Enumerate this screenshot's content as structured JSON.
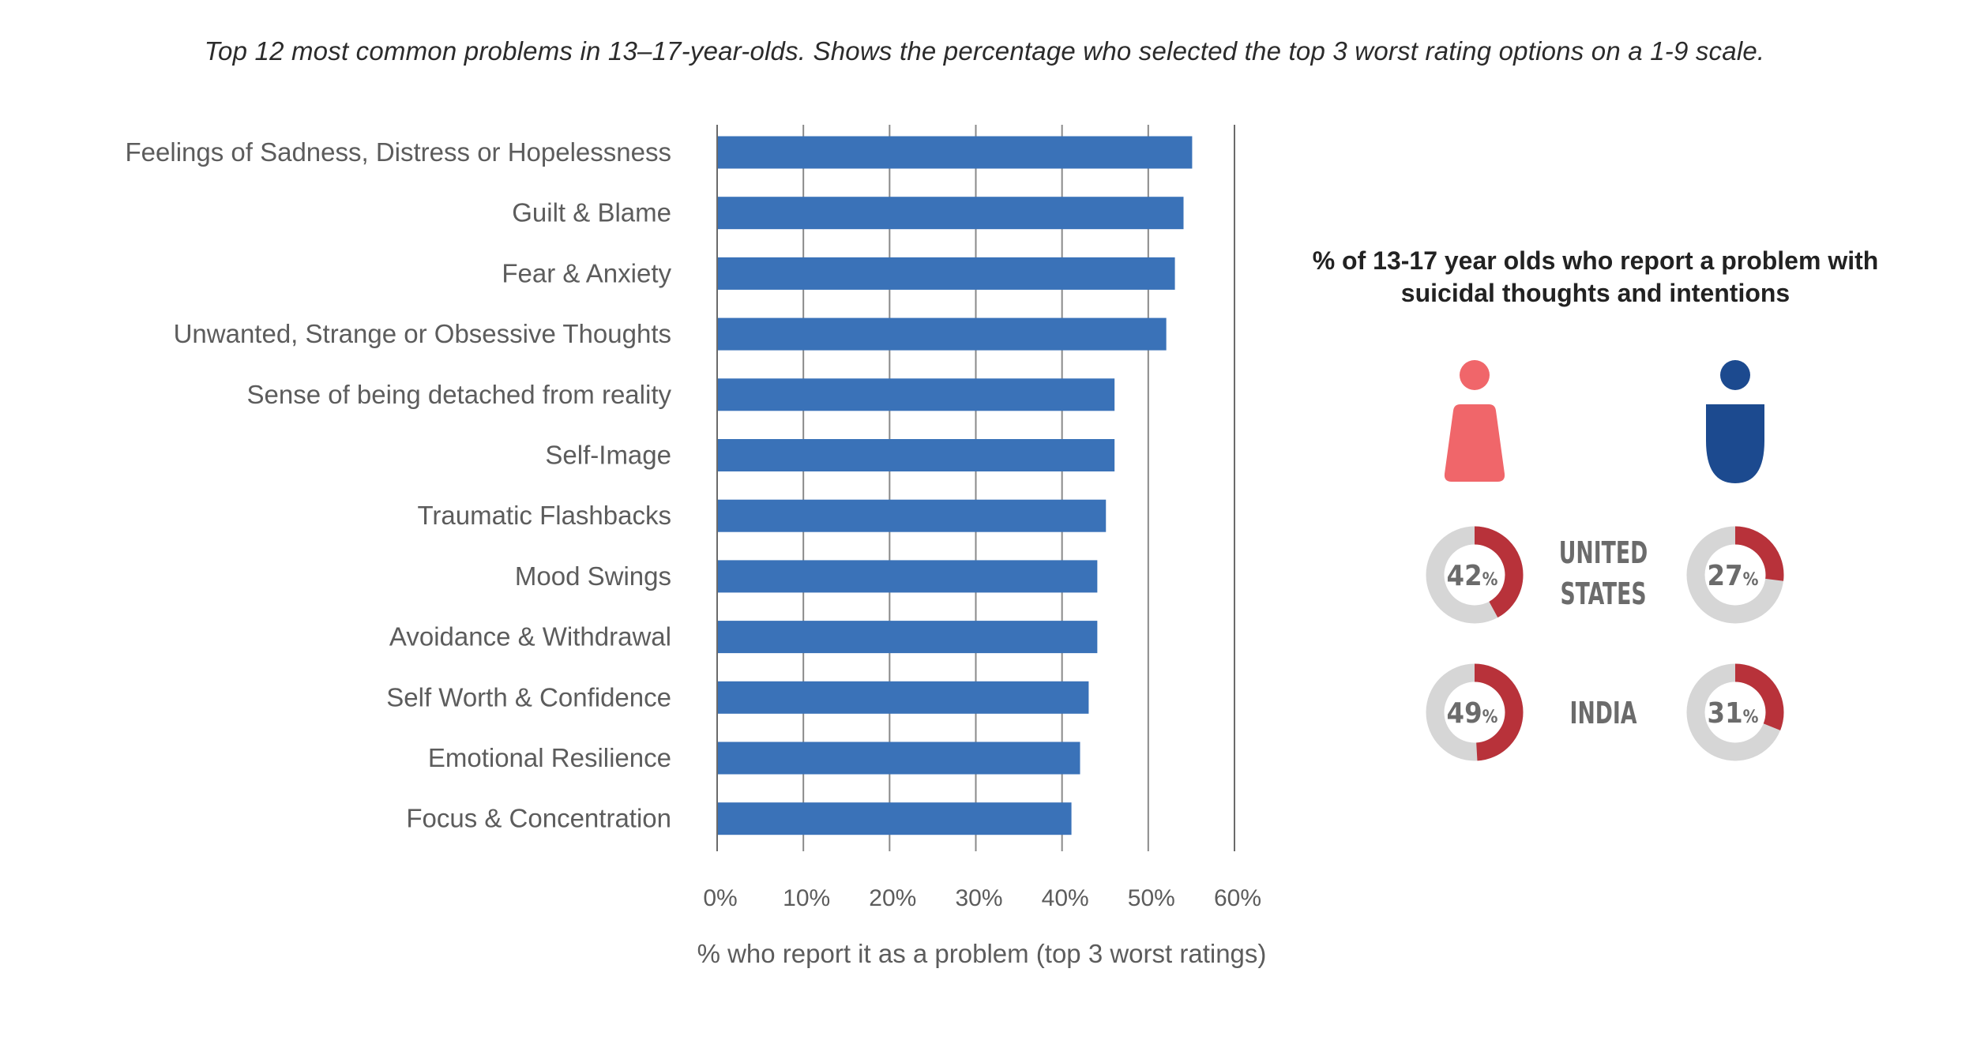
{
  "caption": "Top 12 most common problems in 13–17-year-olds. Shows the percentage who selected the top 3 worst rating options on a 1-9 scale.",
  "chart_data": [
    {
      "type": "bar",
      "orientation": "horizontal",
      "categories": [
        "Feelings of Sadness, Distress or Hopelessness",
        "Guilt & Blame",
        "Fear & Anxiety",
        "Unwanted, Strange or Obsessive Thoughts",
        "Sense of being detached from reality",
        "Self-Image",
        "Traumatic Flashbacks",
        "Mood Swings",
        "Avoidance & Withdrawal",
        "Self Worth & Confidence",
        "Emotional Resilience",
        "Focus & Concentration"
      ],
      "values": [
        55,
        54,
        53,
        52,
        46,
        46,
        45,
        44,
        44,
        43,
        42,
        41
      ],
      "xlim": [
        0,
        60
      ],
      "xticks": [
        "0%",
        "10%",
        "20%",
        "30%",
        "40%",
        "50%",
        "60%"
      ],
      "xlabel": "% who report it as a problem (top 3 worst ratings)",
      "grid": true,
      "bar_color": "#3a72b8"
    },
    {
      "type": "pie",
      "style": "donut",
      "title": "% of 13-17 year olds who report a problem with suicidal thoughts and intentions",
      "rows": [
        "UNITED STATES",
        "INDIA"
      ],
      "columns": [
        "female",
        "male"
      ],
      "values": [
        [
          42,
          27
        ],
        [
          49,
          31
        ]
      ],
      "unit": "%",
      "fill_color": "#b8323a",
      "track_color": "#d6d6d6",
      "female_color": "#f0666a",
      "male_color": "#1c4a8f"
    }
  ]
}
